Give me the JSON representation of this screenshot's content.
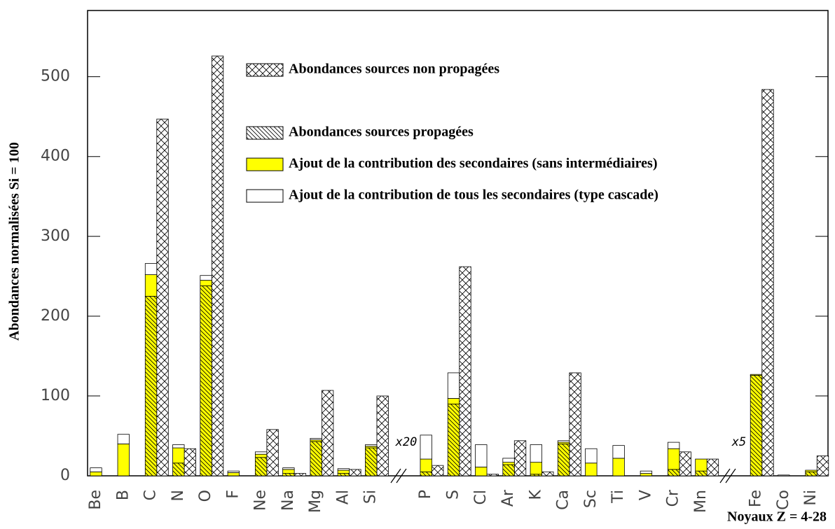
{
  "chart_data": {
    "type": "bar",
    "ylabel": "Abondances normalisées   Si = 100",
    "xlabel": "Noyaux   Z = 4-28",
    "annotations": [
      "x20",
      "x5"
    ],
    "categories": [
      "Be",
      "B",
      "C",
      "N",
      "O",
      "F",
      "Ne",
      "Na",
      "Mg",
      "Al",
      "Si",
      null,
      "P",
      "S",
      "Cl",
      "Ar",
      "K",
      "Ca",
      "Sc",
      "Ti",
      "V",
      "Cr",
      "Mn",
      null,
      "Fe",
      "Co",
      "Ni"
    ],
    "ylim": [
      0,
      583
    ],
    "yticks": [
      0,
      100,
      200,
      300,
      400,
      500
    ],
    "series": [
      {
        "name": "Abondances sources non propagées",
        "color": "#ffffff",
        "pattern": "crosshatch",
        "values": [
          0,
          0,
          447,
          34,
          526,
          0,
          58,
          3,
          107,
          8,
          100,
          null,
          13,
          262,
          2,
          44,
          5,
          129,
          0,
          0,
          0,
          30,
          21,
          null,
          484,
          0,
          25
        ]
      },
      {
        "name": "Abondances sources propagées",
        "color": "#ffff00",
        "pattern": "hatch",
        "values": [
          0,
          0,
          225,
          16,
          238,
          0,
          23,
          3,
          43,
          3,
          35,
          null,
          5,
          90,
          0,
          14,
          2,
          40,
          0,
          0,
          0,
          8,
          6,
          null,
          126,
          0,
          5
        ]
      },
      {
        "name": "Ajout de la contribution des secondaires (sans intermédiaires)",
        "color": "#ffff00",
        "pattern": "none",
        "values": [
          5,
          40,
          27,
          19,
          7,
          4,
          4,
          5,
          2,
          4,
          2,
          null,
          16,
          7,
          11,
          3,
          15,
          2,
          16,
          22,
          3,
          26,
          15,
          null,
          1,
          0,
          2
        ]
      },
      {
        "name": "Ajout de la contribution de tous les secondaires (type cascade)",
        "color": "#ffffff",
        "pattern": "none",
        "values": [
          5,
          12,
          14,
          4,
          6,
          2,
          3,
          2,
          2,
          2,
          2,
          null,
          30,
          32,
          28,
          5,
          22,
          2,
          18,
          16,
          3,
          8,
          0,
          null,
          0,
          1,
          0
        ]
      }
    ]
  }
}
